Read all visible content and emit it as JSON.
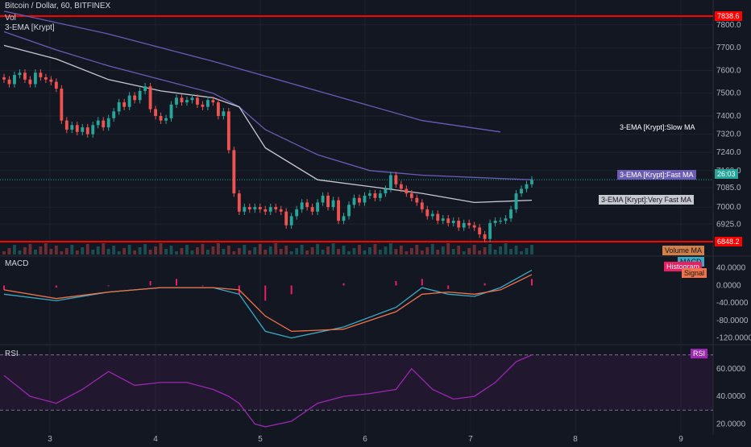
{
  "header": {
    "symbol_line": "Bitcoin / Dollar, 60, BITFINEX",
    "vol": "Vol",
    "ema": "3-EMA [Krypt]"
  },
  "macd_panel": {
    "title": "MACD"
  },
  "rsi_panel": {
    "title": "RSI"
  },
  "labels": {
    "slow_ma": "3-EMA [Krypt]:Slow MA",
    "fast_ma": "3-EMA [Krypt]:Fast MA",
    "very_fast_ma": "3-EMA [Krypt]:Very Fast MA",
    "volume_ma": "Volume MA",
    "macd": "MACD",
    "histogram": "Histogram",
    "signal": "Signal",
    "rsi": "RSI"
  },
  "price_tags": {
    "resistance": "7838.6",
    "current": "26:03",
    "support": "6848.2"
  },
  "colors": {
    "background": "#131722",
    "up": "#26a69a",
    "down": "#ef5350",
    "slow_ma": "#6b5bb5",
    "very_fast_ma": "#c8c8d0",
    "macd": "#3ba9c6",
    "signal": "#f0734a",
    "histogram": "#e91e63",
    "rsi": "#9c27b0",
    "hline": "#ff0000"
  },
  "chart_data": {
    "type": "candlestick",
    "x_ticks": [
      "3",
      "4",
      "5",
      "6",
      "7",
      "8",
      "9"
    ],
    "price_axis": {
      "ticks": [
        "7800.0",
        "7700.0",
        "7600.0",
        "7500.0",
        "7400.0",
        "7320.0",
        "7240.0",
        "7160.0",
        "7085.0",
        "7000.0",
        "6925.0"
      ],
      "resistance": 7838.6,
      "support": 6848.2,
      "last_close": 7120
    },
    "candles_close": [
      7560,
      7540,
      7580,
      7590,
      7560,
      7540,
      7590,
      7570,
      7560,
      7550,
      7520,
      7380,
      7340,
      7360,
      7330,
      7350,
      7320,
      7360,
      7380,
      7350,
      7390,
      7420,
      7460,
      7440,
      7490,
      7470,
      7510,
      7530,
      7430,
      7400,
      7380,
      7390,
      7450,
      7480,
      7460,
      7470,
      7480,
      7450,
      7440,
      7470,
      7460,
      7400,
      7420,
      7250,
      7060,
      6980,
      7000,
      6990,
      7000,
      6990,
      6980,
      7000,
      6990,
      6980,
      6920,
      6960,
      6990,
      7020,
      7000,
      6980,
      7020,
      7050,
      7000,
      7030,
      6940,
      6960,
      7010,
      7040,
      7020,
      7050,
      7060,
      7040,
      7060,
      7080,
      7140,
      7100,
      7080,
      7060,
      7040,
      7020,
      6990,
      6960,
      6970,
      6940,
      6950,
      6930,
      6940,
      6910,
      6930,
      6920,
      6910,
      6880,
      6860,
      6930,
      6940,
      6940,
      6950,
      6990,
      7060,
      7080,
      7100,
      7120
    ],
    "slow_ma": [
      [
        0,
        7860
      ],
      [
        20,
        7760
      ],
      [
        40,
        7640
      ],
      [
        60,
        7510
      ],
      [
        80,
        7380
      ],
      [
        95,
        7330
      ]
    ],
    "fast_ma": [
      [
        0,
        7770
      ],
      [
        10,
        7690
      ],
      [
        20,
        7620
      ],
      [
        30,
        7560
      ],
      [
        40,
        7500
      ],
      [
        45,
        7440
      ],
      [
        50,
        7340
      ],
      [
        60,
        7230
      ],
      [
        70,
        7160
      ],
      [
        80,
        7140
      ],
      [
        90,
        7130
      ],
      [
        101,
        7120
      ]
    ],
    "very_fast_ma": [
      [
        0,
        7710
      ],
      [
        10,
        7650
      ],
      [
        20,
        7560
      ],
      [
        30,
        7510
      ],
      [
        40,
        7480
      ],
      [
        45,
        7440
      ],
      [
        50,
        7260
      ],
      [
        60,
        7120
      ],
      [
        70,
        7090
      ],
      [
        80,
        7060
      ],
      [
        90,
        7020
      ],
      [
        101,
        7030
      ]
    ],
    "macd_axis": [
      "40.0000",
      "0.0000",
      "-40.0000",
      "-80.0000",
      "-120.0000"
    ],
    "macd": [
      [
        0,
        -20
      ],
      [
        10,
        -35
      ],
      [
        20,
        -15
      ],
      [
        30,
        -5
      ],
      [
        40,
        -5
      ],
      [
        45,
        -20
      ],
      [
        50,
        -105
      ],
      [
        55,
        -120
      ],
      [
        65,
        -95
      ],
      [
        75,
        -50
      ],
      [
        80,
        -5
      ],
      [
        85,
        -20
      ],
      [
        90,
        -25
      ],
      [
        95,
        -5
      ],
      [
        101,
        35
      ]
    ],
    "signal": [
      [
        0,
        -10
      ],
      [
        10,
        -30
      ],
      [
        20,
        -15
      ],
      [
        30,
        -5
      ],
      [
        40,
        -5
      ],
      [
        45,
        -10
      ],
      [
        50,
        -70
      ],
      [
        55,
        -105
      ],
      [
        65,
        -100
      ],
      [
        75,
        -60
      ],
      [
        80,
        -20
      ],
      [
        85,
        -15
      ],
      [
        90,
        -20
      ],
      [
        95,
        -10
      ],
      [
        101,
        25
      ]
    ],
    "histogram": [
      [
        0,
        -10
      ],
      [
        10,
        -5
      ],
      [
        20,
        0
      ],
      [
        28,
        10
      ],
      [
        33,
        15
      ],
      [
        38,
        0
      ],
      [
        45,
        -20
      ],
      [
        50,
        -35
      ],
      [
        55,
        -20
      ],
      [
        65,
        5
      ],
      [
        75,
        10
      ],
      [
        80,
        15
      ],
      [
        85,
        -8
      ],
      [
        92,
        5
      ],
      [
        101,
        15
      ]
    ],
    "rsi_axis": [
      "60.0000",
      "40.0000",
      "20.0000"
    ],
    "rsi_bands": [
      70,
      30
    ],
    "rsi": [
      [
        0,
        55
      ],
      [
        5,
        40
      ],
      [
        10,
        35
      ],
      [
        15,
        45
      ],
      [
        20,
        58
      ],
      [
        25,
        48
      ],
      [
        30,
        50
      ],
      [
        35,
        50
      ],
      [
        40,
        45
      ],
      [
        43,
        40
      ],
      [
        45,
        35
      ],
      [
        48,
        20
      ],
      [
        50,
        18
      ],
      [
        55,
        22
      ],
      [
        60,
        35
      ],
      [
        65,
        40
      ],
      [
        70,
        42
      ],
      [
        75,
        45
      ],
      [
        78,
        60
      ],
      [
        82,
        45
      ],
      [
        86,
        38
      ],
      [
        90,
        40
      ],
      [
        94,
        50
      ],
      [
        98,
        65
      ],
      [
        101,
        70
      ]
    ]
  }
}
